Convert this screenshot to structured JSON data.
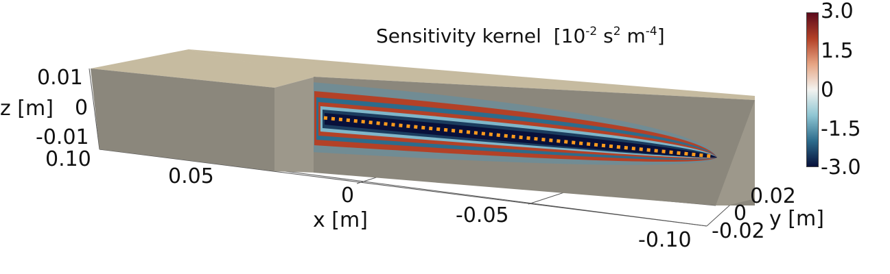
{
  "title": {
    "main": "Sensitivity kernel",
    "unit_open": "[10",
    "unit_exp1": "-2",
    "unit_mid": " s",
    "unit_exp2": "2",
    "unit_mid2": " m",
    "unit_exp3": "-4",
    "unit_close": "]"
  },
  "colorbar": {
    "ticks": [
      "3.0",
      "1.5",
      "0",
      "-1.5",
      "-3.0"
    ],
    "range": [
      -3.0,
      3.0
    ],
    "colors": [
      "#08103a",
      "#2d6c8c",
      "#8fc6d3",
      "#f3f3f0",
      "#e6a584",
      "#b34127",
      "#5c0a1c"
    ]
  },
  "axes": {
    "z": {
      "label": "z [m]",
      "ticks": [
        "0.01",
        "0",
        "-0.01"
      ]
    },
    "x": {
      "label": "x [m]",
      "ticks": [
        "0.10",
        "0.05",
        "0",
        "-0.05",
        "-0.10"
      ]
    },
    "y": {
      "label": "y [m]",
      "ticks": [
        "0.02",
        "0",
        "-0.02"
      ]
    }
  },
  "colors": {
    "box_front": "#8b877c",
    "box_top": "#c6bba0",
    "box_side": "#9d988b",
    "source_line": "#ff9a1c",
    "grid": "#555555"
  }
}
